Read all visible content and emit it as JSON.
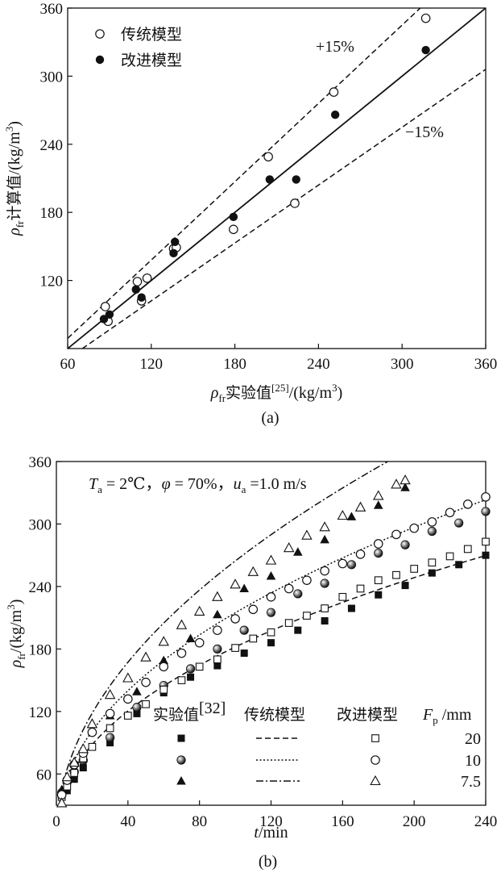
{
  "chart_data": [
    {
      "type": "scatter",
      "caption": "(a)",
      "xlabel": {
        "sym": "ρ",
        "sub": "fr",
        "text": "实验值",
        "sup": "[25]",
        "unit": "/(kg/m",
        "unit_sup": "3",
        "unit_end": ")"
      },
      "ylabel": {
        "sym": "ρ",
        "sub": "fr",
        "text": "计算值",
        "unit": "/(kg/m",
        "unit_sup": "3",
        "unit_end": ")"
      },
      "xlim": [
        60,
        360
      ],
      "ylim": [
        60,
        360
      ],
      "xticks": [
        "60",
        "120",
        "180",
        "240",
        "300",
        "360"
      ],
      "yticks": [
        "120",
        "180",
        "240",
        "300",
        "360"
      ],
      "legend": [
        "传统模型",
        "改进模型"
      ],
      "annotations": [
        "+15%",
        "−15%"
      ],
      "lines": [
        {
          "name": "y=x",
          "style": "solid",
          "factor": 1.0
        },
        {
          "name": "+15%",
          "style": "dashed",
          "factor": 1.15
        },
        {
          "name": "−15%",
          "style": "dashed",
          "factor": 0.85
        }
      ],
      "series": [
        {
          "name": "传统模型",
          "marker": "open-circle",
          "points": [
            [
              87,
              97
            ],
            [
              89,
              84
            ],
            [
              110,
              119
            ],
            [
              113,
              102
            ],
            [
              117,
              122
            ],
            [
              136,
              148
            ],
            [
              138,
              149
            ],
            [
              179,
              165
            ],
            [
              204,
              229
            ],
            [
              223,
              188
            ],
            [
              251,
              286
            ],
            [
              317,
              351
            ]
          ]
        },
        {
          "name": "改进模型",
          "marker": "filled-circle",
          "points": [
            [
              86,
              86
            ],
            [
              90,
              90
            ],
            [
              109,
              112
            ],
            [
              113,
              105
            ],
            [
              136,
              144
            ],
            [
              137,
              154
            ],
            [
              179,
              176
            ],
            [
              205,
              209
            ],
            [
              224,
              209
            ],
            [
              252,
              266
            ],
            [
              317,
              323
            ]
          ]
        }
      ]
    },
    {
      "type": "scatter",
      "caption": "(b)",
      "condition_text": {
        "T": "T",
        "T_sub": "a",
        "T_val": " = 2℃，",
        "phi": "φ",
        "phi_val": " = 70%，",
        "u": "u",
        "u_sub": "a",
        "u_val": " =1.0 m/s"
      },
      "xlabel": {
        "sym": "t",
        "unit": "/min"
      },
      "ylabel": {
        "sym": "ρ",
        "sub": "fr",
        "unit": "/(kg/m",
        "unit_sup": "3",
        "unit_end": ")"
      },
      "xlim": [
        0,
        240
      ],
      "ylim": [
        30,
        360
      ],
      "xticks": [
        "0",
        "40",
        "80",
        "120",
        "160",
        "200",
        "240"
      ],
      "yticks": [
        "60",
        "120",
        "180",
        "240",
        "300",
        "360"
      ],
      "legend_headers": {
        "exp": "实验值",
        "exp_sup": "[32]",
        "trad": "传统模型",
        "impr": "改进模型",
        "fp": "F",
        "fp_sub": "p",
        "fp_unit": " /mm"
      },
      "legend_rows": [
        "20",
        "10",
        "7.5"
      ],
      "model_curves": [
        {
          "Fp": "20",
          "style": "dashed",
          "a": 22.9,
          "b": 0.45
        },
        {
          "Fp": "10",
          "style": "dotted",
          "a": 25.0,
          "b": 0.467
        },
        {
          "Fp": "7.5",
          "style": "dashdot",
          "a": 26.45,
          "b": 0.5
        }
      ],
      "series": [
        {
          "name": "实验值 20",
          "marker": "filled-square",
          "points": [
            [
              3,
              38
            ],
            [
              6,
              44
            ],
            [
              10,
              55
            ],
            [
              15,
              66
            ],
            [
              30,
              90
            ],
            [
              45,
              118
            ],
            [
              60,
              138
            ],
            [
              75,
              153
            ],
            [
              90,
              164
            ],
            [
              105,
              176
            ],
            [
              120,
              186
            ],
            [
              135,
              198
            ],
            [
              150,
              207
            ],
            [
              165,
              219
            ],
            [
              180,
              232
            ],
            [
              195,
              241
            ],
            [
              210,
              253
            ],
            [
              225,
              261
            ],
            [
              240,
              270
            ]
          ]
        },
        {
          "name": "实验值 10",
          "marker": "shaded-circle",
          "points": [
            [
              3,
              42
            ],
            [
              6,
              52
            ],
            [
              10,
              62
            ],
            [
              15,
              73
            ],
            [
              30,
              95
            ],
            [
              45,
              124
            ],
            [
              60,
              145
            ],
            [
              75,
              161
            ],
            [
              90,
              180
            ],
            [
              105,
              198
            ],
            [
              120,
              215
            ],
            [
              135,
              233
            ],
            [
              150,
              243
            ],
            [
              165,
              261
            ],
            [
              180,
              272
            ],
            [
              195,
              280
            ],
            [
              210,
              293
            ],
            [
              225,
              301
            ],
            [
              240,
              312
            ]
          ]
        },
        {
          "name": "实验值 7.5",
          "marker": "filled-triangle",
          "points": [
            [
              3,
              45
            ],
            [
              6,
              55
            ],
            [
              10,
              66
            ],
            [
              15,
              77
            ],
            [
              30,
              116
            ],
            [
              45,
              139
            ],
            [
              60,
              169
            ],
            [
              75,
              190
            ],
            [
              90,
              213
            ],
            [
              105,
              238
            ],
            [
              120,
              250
            ],
            [
              135,
              273
            ],
            [
              150,
              285
            ],
            [
              165,
              307
            ],
            [
              180,
              318
            ],
            [
              195,
              335
            ]
          ]
        },
        {
          "name": "改进模型 20",
          "marker": "open-square",
          "points": [
            [
              3,
              38
            ],
            [
              6,
              48
            ],
            [
              10,
              61
            ],
            [
              15,
              75
            ],
            [
              20,
              86
            ],
            [
              30,
              104
            ],
            [
              40,
              116
            ],
            [
              50,
              127
            ],
            [
              60,
              141
            ],
            [
              70,
              150
            ],
            [
              80,
              163
            ],
            [
              90,
              170
            ],
            [
              100,
              181
            ],
            [
              110,
              190
            ],
            [
              120,
              196
            ],
            [
              130,
              205
            ],
            [
              140,
              212
            ],
            [
              150,
              219
            ],
            [
              160,
              230
            ],
            [
              170,
              238
            ],
            [
              180,
              246
            ],
            [
              190,
              251
            ],
            [
              200,
              257
            ],
            [
              210,
              263
            ],
            [
              220,
              269
            ],
            [
              230,
              276
            ],
            [
              240,
              283
            ]
          ]
        },
        {
          "name": "改进模型 10",
          "marker": "open-circle",
          "points": [
            [
              3,
              40
            ],
            [
              6,
              54
            ],
            [
              10,
              69
            ],
            [
              15,
              80
            ],
            [
              20,
              100
            ],
            [
              30,
              118
            ],
            [
              40,
              132
            ],
            [
              50,
              148
            ],
            [
              60,
              163
            ],
            [
              70,
              176
            ],
            [
              80,
              186
            ],
            [
              90,
              198
            ],
            [
              100,
              209
            ],
            [
              110,
              218
            ],
            [
              120,
              230
            ],
            [
              130,
              238
            ],
            [
              140,
              246
            ],
            [
              150,
              255
            ],
            [
              160,
              262
            ],
            [
              170,
              271
            ],
            [
              180,
              281
            ],
            [
              190,
              290
            ],
            [
              200,
              296
            ],
            [
              210,
              302
            ],
            [
              220,
              311
            ],
            [
              230,
              319
            ],
            [
              240,
              326
            ]
          ]
        },
        {
          "name": "改进模型 7.5",
          "marker": "open-triangle",
          "points": [
            [
              3,
              32
            ],
            [
              6,
              57
            ],
            [
              10,
              71
            ],
            [
              15,
              84
            ],
            [
              20,
              108
            ],
            [
              30,
              136
            ],
            [
              40,
              152
            ],
            [
              50,
              172
            ],
            [
              60,
              187
            ],
            [
              70,
              203
            ],
            [
              80,
              216
            ],
            [
              90,
              230
            ],
            [
              100,
              242
            ],
            [
              110,
              254
            ],
            [
              120,
              265
            ],
            [
              130,
              277
            ],
            [
              140,
              289
            ],
            [
              150,
              297
            ],
            [
              160,
              308
            ],
            [
              170,
              316
            ],
            [
              180,
              327
            ],
            [
              190,
              338
            ],
            [
              195,
              342
            ]
          ]
        }
      ]
    }
  ]
}
